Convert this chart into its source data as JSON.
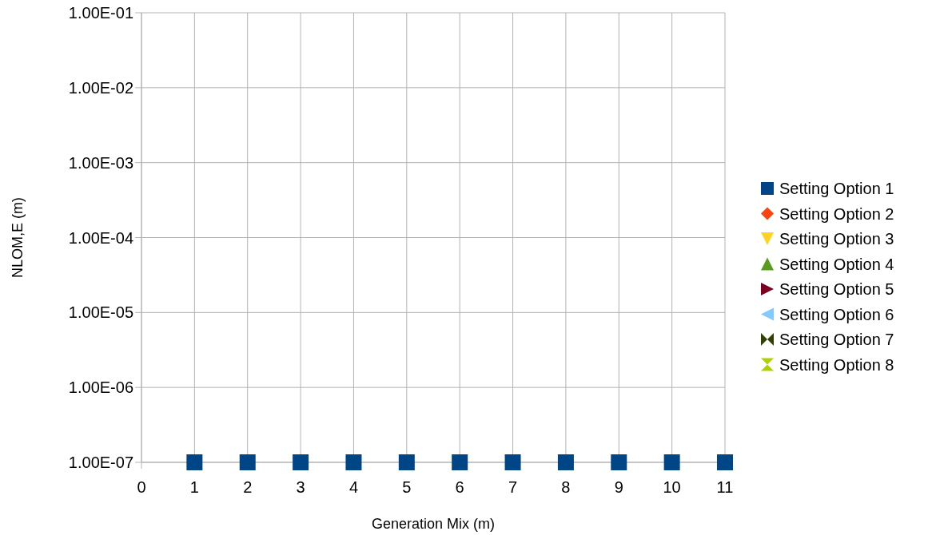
{
  "chart_data": {
    "type": "scatter",
    "xlabel": "Generation Mix (m)",
    "ylabel": "NLOM,E (m)",
    "x": [
      1,
      2,
      3,
      4,
      5,
      6,
      7,
      8,
      9,
      10,
      11
    ],
    "xlim": [
      0,
      11
    ],
    "xticks": [
      0,
      1,
      2,
      3,
      4,
      5,
      6,
      7,
      8,
      9,
      10,
      11
    ],
    "ylim": [
      1e-07,
      0.1
    ],
    "log": "y",
    "yticks": [
      {
        "value": 1e-07,
        "label": "1.00E-07"
      },
      {
        "value": 1e-06,
        "label": "1.00E-06"
      },
      {
        "value": 1e-05,
        "label": "1.00E-05"
      },
      {
        "value": 0.0001,
        "label": "1.00E-04"
      },
      {
        "value": 0.001,
        "label": "1.00E-03"
      },
      {
        "value": 0.01,
        "label": "1.00E-02"
      },
      {
        "value": 0.1,
        "label": "1.00E-01"
      }
    ],
    "grid": true,
    "legend": "right",
    "series": [
      {
        "name": "Setting Option 1",
        "color": "#004586",
        "marker": "square",
        "values": [
          1e-07,
          1e-07,
          1e-07,
          1e-07,
          1e-07,
          1e-07,
          1e-07,
          1e-07,
          1e-07,
          1e-07,
          1e-07
        ]
      },
      {
        "name": "Setting Option 2",
        "color": "#ff420e",
        "marker": "diamond",
        "values": [
          null,
          null,
          null,
          null,
          null,
          null,
          null,
          null,
          null,
          null,
          null
        ]
      },
      {
        "name": "Setting Option 3",
        "color": "#ffd320",
        "marker": "triangle-down",
        "values": [
          null,
          null,
          null,
          null,
          null,
          null,
          null,
          null,
          null,
          null,
          null
        ]
      },
      {
        "name": "Setting Option 4",
        "color": "#579d1c",
        "marker": "triangle",
        "values": [
          null,
          null,
          null,
          null,
          null,
          null,
          null,
          null,
          null,
          null,
          null
        ]
      },
      {
        "name": "Setting Option 5",
        "color": "#7e0021",
        "marker": "triangle-right",
        "values": [
          null,
          null,
          null,
          null,
          null,
          null,
          null,
          null,
          null,
          null,
          null
        ]
      },
      {
        "name": "Setting Option 6",
        "color": "#83caff",
        "marker": "triangle-left",
        "values": [
          null,
          null,
          null,
          null,
          null,
          null,
          null,
          null,
          null,
          null,
          null
        ]
      },
      {
        "name": "Setting Option 7",
        "color": "#314004",
        "marker": "bowtie",
        "values": [
          null,
          null,
          null,
          null,
          null,
          null,
          null,
          null,
          null,
          null,
          null
        ]
      },
      {
        "name": "Setting Option 8",
        "color": "#aecf00",
        "marker": "hourglass",
        "values": [
          null,
          null,
          null,
          null,
          null,
          null,
          null,
          null,
          null,
          null,
          null
        ]
      }
    ]
  }
}
